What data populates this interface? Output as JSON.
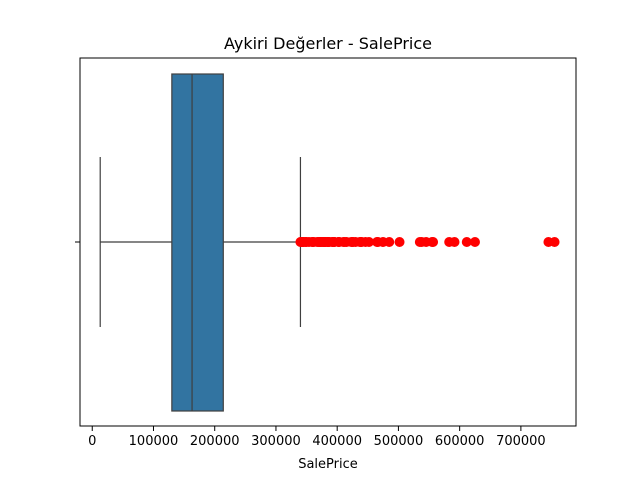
{
  "chart_data": {
    "type": "box",
    "title": "Aykiri Değerler - SalePrice",
    "xlabel": "SalePrice",
    "ylabel": "",
    "xlim": [
      -20000,
      790000
    ],
    "xticks": [
      0,
      100000,
      200000,
      300000,
      400000,
      500000,
      600000,
      700000
    ],
    "xtick_labels": [
      "0",
      "100000",
      "200000",
      "300000",
      "400000",
      "500000",
      "600000",
      "700000"
    ],
    "grid": false,
    "legend": "none",
    "box": {
      "whisker_low": 13000,
      "q1": 129975,
      "median": 163000,
      "q3": 214000,
      "whisker_high": 340000,
      "fill_color": "#3274a1",
      "line_color": "#3f3f3f"
    },
    "outliers": {
      "color": "#ff0000",
      "values": [
        340000,
        341000,
        342643,
        344000,
        345000,
        348000,
        350000,
        354000,
        359100,
        360000,
        361919,
        367294,
        369900,
        370878,
        372402,
        372500,
        375000,
        377426,
        377500,
        378500,
        380000,
        381000,
        383970,
        385000,
        386250,
        387000,
        392000,
        392500,
        394432,
        394617,
        395000,
        395192,
        402000,
        402861,
        403000,
        410000,
        412500,
        415298,
        423000,
        424870,
        426000,
        430000,
        437154,
        438780,
        440000,
        446261,
        451950,
        465000,
        466500,
        475000,
        485000,
        501837,
        535000,
        538000,
        545224,
        555000,
        556581,
        582933,
        591587,
        611657,
        625000,
        745000,
        755000
      ]
    }
  }
}
